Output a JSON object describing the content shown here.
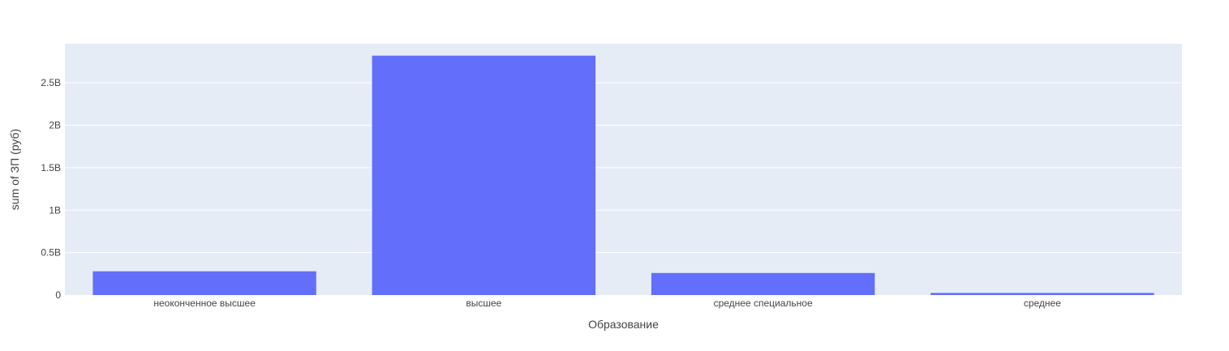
{
  "chart_data": {
    "type": "bar",
    "categories": [
      "неоконченное высшее",
      "высшее",
      "среднее специальное",
      "среднее"
    ],
    "values": [
      280000000,
      2820000000,
      260000000,
      25000000
    ],
    "xlabel": "Образование",
    "ylabel": "sum of ЗП (руб)",
    "ylim": [
      0,
      2960000000
    ],
    "yticks": [
      0,
      500000000,
      1000000000,
      1500000000,
      2000000000,
      2500000000
    ],
    "ytick_labels": [
      "0",
      "0.5B",
      "1B",
      "1.5B",
      "2B",
      "2.5B"
    ],
    "grid": true,
    "bar_color": "#636efa",
    "plot_bg": "#e5ecf6"
  }
}
